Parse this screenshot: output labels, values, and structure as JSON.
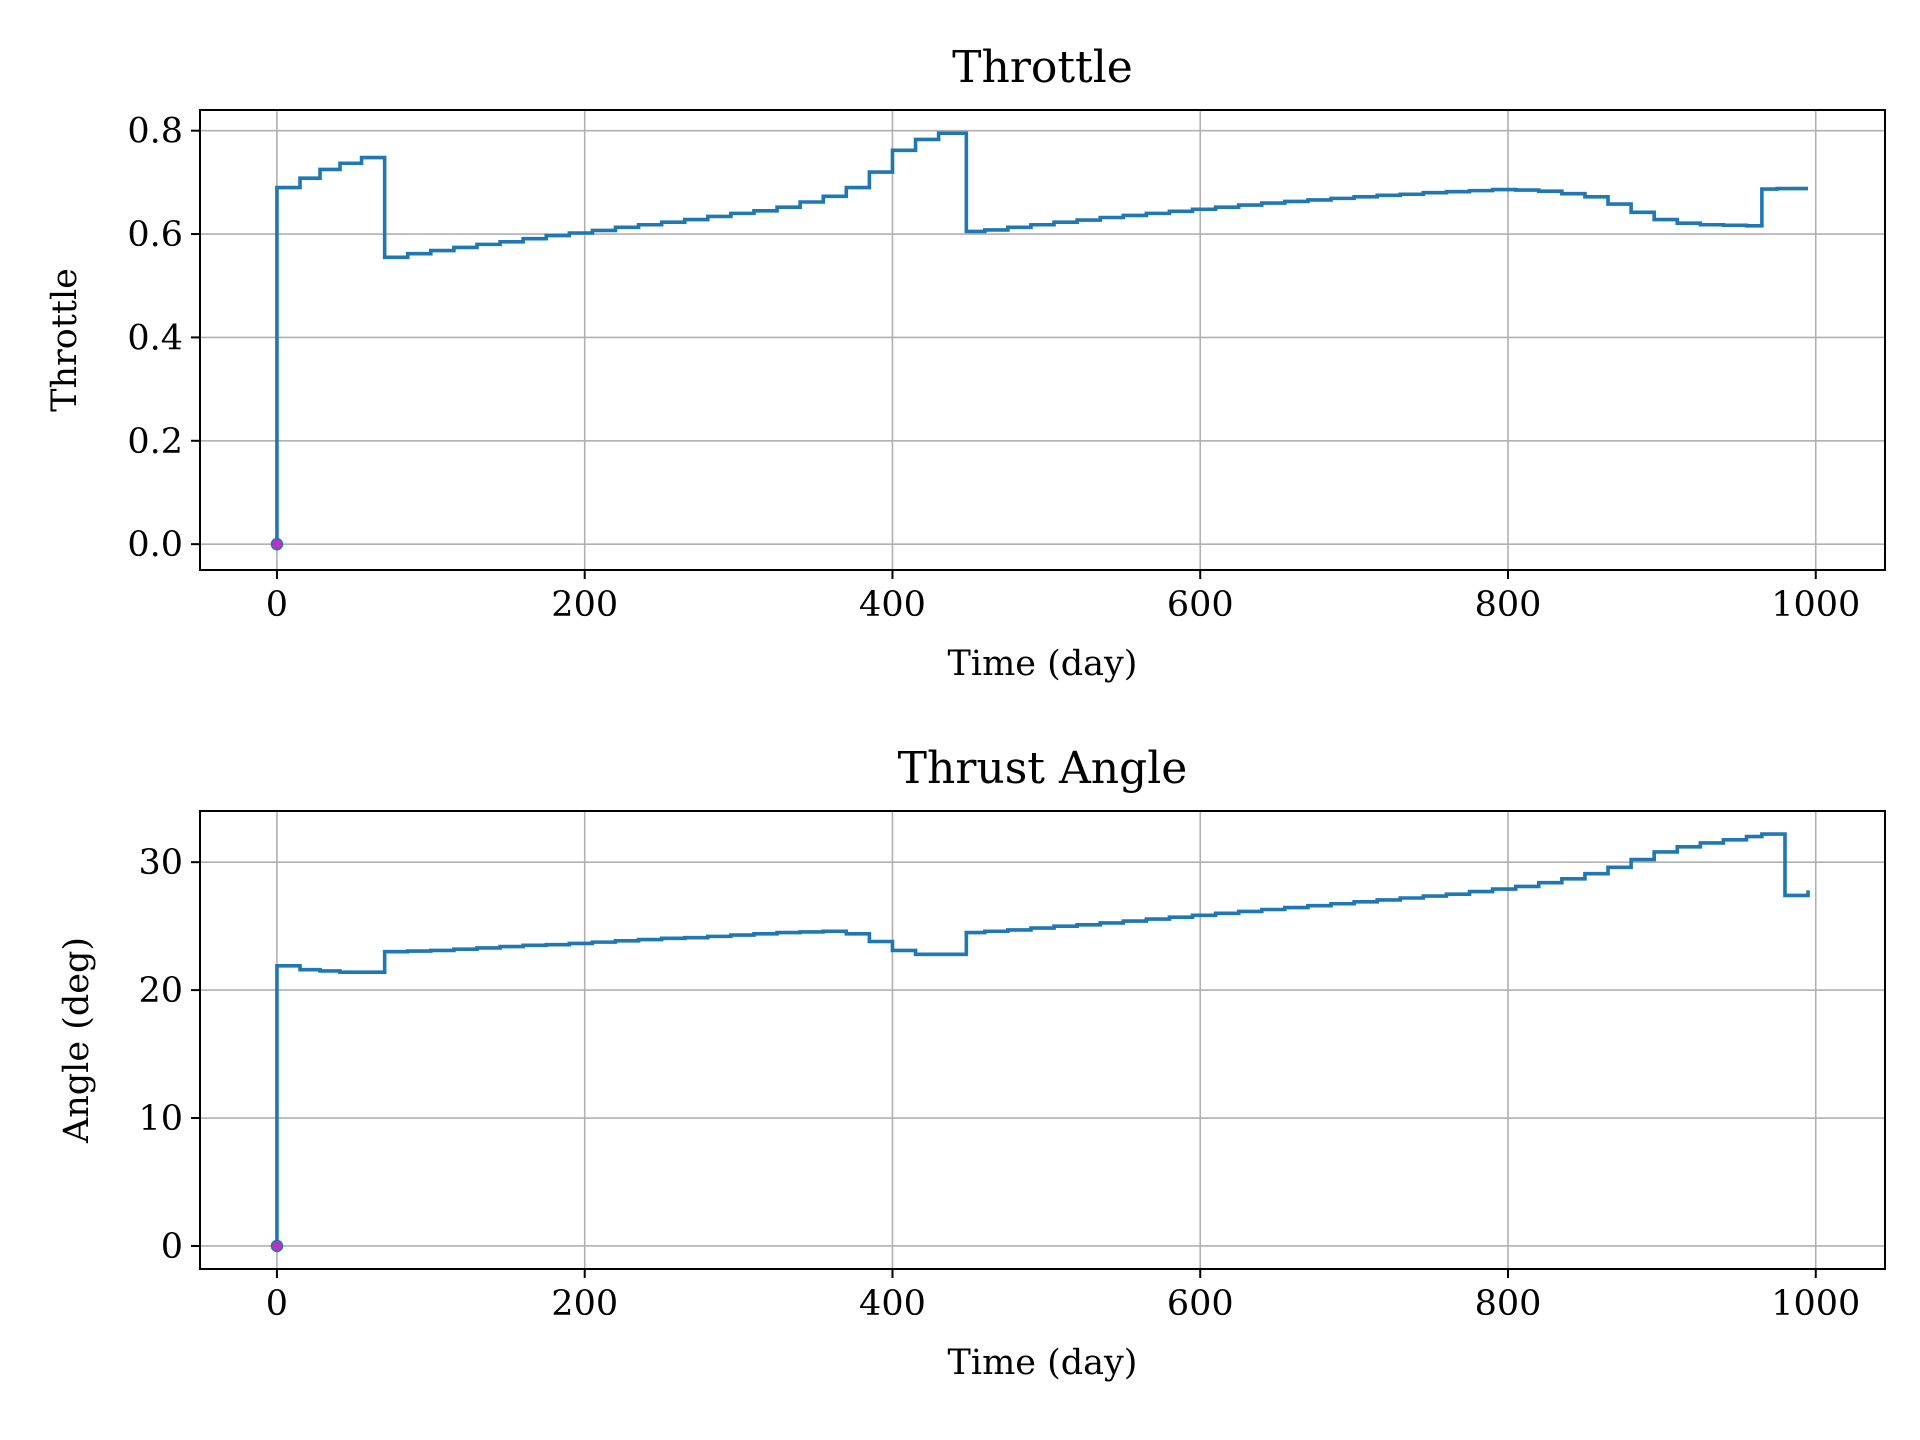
{
  "chart_data": [
    {
      "type": "line",
      "step": true,
      "title": "Throttle",
      "xlabel": "Time (day)",
      "ylabel": "Throttle",
      "xlim": [
        -50,
        1045
      ],
      "ylim": [
        -0.05,
        0.84
      ],
      "xticks": [
        0,
        200,
        400,
        600,
        800,
        1000
      ],
      "xtick_labels": [
        "0",
        "200",
        "400",
        "600",
        "800",
        "1000"
      ],
      "yticks": [
        0.0,
        0.2,
        0.4,
        0.6,
        0.8
      ],
      "ytick_labels": [
        "0.0",
        "0.2",
        "0.4",
        "0.6",
        "0.8"
      ],
      "grid": true,
      "line_color": "#1f77b4",
      "marker": {
        "x": 0,
        "y": 0.0,
        "color": "#c030c0"
      },
      "x": [
        0,
        0,
        15,
        28,
        41,
        55,
        70,
        85,
        100,
        115,
        130,
        145,
        160,
        175,
        190,
        205,
        220,
        235,
        250,
        265,
        280,
        295,
        310,
        325,
        340,
        355,
        370,
        385,
        400,
        415,
        430,
        448,
        460,
        475,
        490,
        505,
        520,
        535,
        550,
        565,
        580,
        595,
        610,
        625,
        640,
        655,
        670,
        685,
        700,
        715,
        730,
        745,
        760,
        775,
        790,
        805,
        820,
        835,
        850,
        865,
        880,
        895,
        910,
        925,
        940,
        955,
        965,
        975,
        995
      ],
      "y": [
        0.0,
        0.69,
        0.708,
        0.725,
        0.737,
        0.748,
        0.555,
        0.562,
        0.568,
        0.574,
        0.58,
        0.585,
        0.591,
        0.597,
        0.602,
        0.607,
        0.613,
        0.618,
        0.623,
        0.628,
        0.634,
        0.64,
        0.645,
        0.652,
        0.662,
        0.673,
        0.69,
        0.72,
        0.762,
        0.783,
        0.795,
        0.605,
        0.608,
        0.613,
        0.618,
        0.623,
        0.627,
        0.632,
        0.636,
        0.64,
        0.644,
        0.648,
        0.652,
        0.656,
        0.66,
        0.663,
        0.666,
        0.669,
        0.672,
        0.675,
        0.677,
        0.68,
        0.682,
        0.684,
        0.686,
        0.685,
        0.683,
        0.678,
        0.672,
        0.658,
        0.642,
        0.628,
        0.621,
        0.618,
        0.617,
        0.616,
        0.687,
        0.688,
        0.688
      ]
    },
    {
      "type": "line",
      "step": true,
      "title": "Thrust Angle",
      "xlabel": "Time (day)",
      "ylabel": "Angle (deg)",
      "xlim": [
        -50,
        1045
      ],
      "ylim": [
        -1.8,
        34
      ],
      "xticks": [
        0,
        200,
        400,
        600,
        800,
        1000
      ],
      "xtick_labels": [
        "0",
        "200",
        "400",
        "600",
        "800",
        "1000"
      ],
      "yticks": [
        0,
        10,
        20,
        30
      ],
      "ytick_labels": [
        "0",
        "10",
        "20",
        "30"
      ],
      "grid": true,
      "line_color": "#1f77b4",
      "marker": {
        "x": 0,
        "y": 0,
        "color": "#c030c0"
      },
      "x": [
        0,
        0,
        15,
        28,
        41,
        55,
        70,
        85,
        100,
        115,
        130,
        145,
        160,
        175,
        190,
        205,
        220,
        235,
        250,
        265,
        280,
        295,
        310,
        325,
        340,
        355,
        370,
        385,
        400,
        415,
        430,
        448,
        460,
        475,
        490,
        505,
        520,
        535,
        550,
        565,
        580,
        595,
        610,
        625,
        640,
        655,
        670,
        685,
        700,
        715,
        730,
        745,
        760,
        775,
        790,
        805,
        820,
        835,
        850,
        865,
        880,
        895,
        910,
        925,
        940,
        955,
        965,
        980,
        995
      ],
      "y": [
        0,
        21.9,
        21.6,
        21.5,
        21.4,
        21.4,
        23.0,
        23.05,
        23.1,
        23.2,
        23.3,
        23.4,
        23.5,
        23.55,
        23.65,
        23.75,
        23.85,
        23.95,
        24.05,
        24.1,
        24.2,
        24.3,
        24.4,
        24.5,
        24.55,
        24.6,
        24.4,
        23.8,
        23.1,
        22.8,
        22.8,
        24.5,
        24.6,
        24.7,
        24.85,
        25.0,
        25.1,
        25.25,
        25.4,
        25.55,
        25.7,
        25.85,
        26.0,
        26.15,
        26.3,
        26.45,
        26.6,
        26.75,
        26.9,
        27.05,
        27.2,
        27.35,
        27.5,
        27.7,
        27.9,
        28.1,
        28.4,
        28.7,
        29.1,
        29.6,
        30.2,
        30.8,
        31.2,
        31.5,
        31.75,
        32.0,
        32.2,
        27.4,
        27.8
      ]
    }
  ],
  "colors": {
    "grid": "#b0b0b0",
    "axes": "#000000",
    "series": "#1f77b4",
    "marker": "#c030c0"
  }
}
